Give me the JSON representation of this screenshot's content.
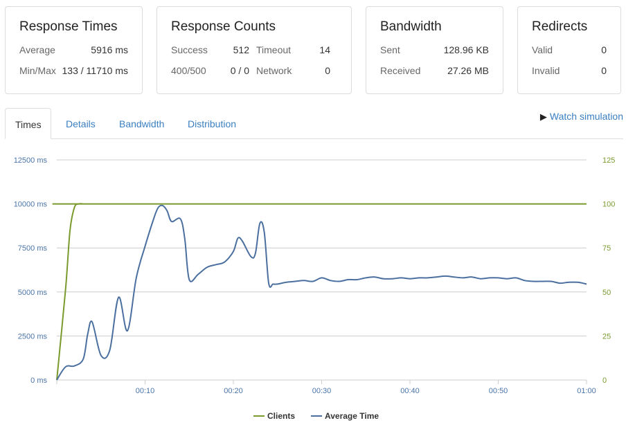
{
  "cards": {
    "times": {
      "title": "Response Times",
      "avg_label": "Average",
      "avg_value": "5916 ms",
      "minmax_label": "Min/Max",
      "minmax_value": "133 / 11710 ms"
    },
    "counts": {
      "title": "Response Counts",
      "success_label": "Success",
      "success_value": "512",
      "timeout_label": "Timeout",
      "timeout_value": "14",
      "err_label": "400/500",
      "err_value": "0 / 0",
      "network_label": "Network",
      "network_value": "0"
    },
    "bandwidth": {
      "title": "Bandwidth",
      "sent_label": "Sent",
      "sent_value": "128.96 KB",
      "recv_label": "Received",
      "recv_value": "27.26 MB"
    },
    "redirects": {
      "title": "Redirects",
      "valid_label": "Valid",
      "valid_value": "0",
      "invalid_label": "Invalid",
      "invalid_value": "0"
    }
  },
  "tabs": [
    "Times",
    "Details",
    "Bandwidth",
    "Distribution"
  ],
  "watch_label": "Watch simulation",
  "colors": {
    "clients": "#7a9a2e",
    "avg": "#4a6f9f",
    "link": "#3a7fc1",
    "grid": "#cccccc"
  },
  "chart_data": {
    "type": "line",
    "title": "",
    "x_unit": "seconds",
    "x_ticks": [
      {
        "v": 10,
        "label": "00:10"
      },
      {
        "v": 20,
        "label": "00:20"
      },
      {
        "v": 30,
        "label": "00:30"
      },
      {
        "v": 40,
        "label": "00:40"
      },
      {
        "v": 50,
        "label": "00:50"
      },
      {
        "v": 60,
        "label": "01:00"
      }
    ],
    "xlim": [
      0,
      60
    ],
    "left_axis": {
      "ylim": [
        0,
        12500
      ],
      "ticks": [
        0,
        2500,
        5000,
        7500,
        10000,
        12500
      ],
      "labels": [
        "0 ms",
        "2500 ms",
        "5000 ms",
        "7500 ms",
        "10000 ms",
        "12500 ms"
      ]
    },
    "right_axis": {
      "ylim": [
        0,
        125
      ],
      "ticks": [
        0,
        25,
        50,
        75,
        100,
        125
      ],
      "labels": [
        "0",
        "25",
        "50",
        "75",
        "100",
        "125"
      ]
    },
    "series": [
      {
        "name": "Clients",
        "axis": "right",
        "x": [
          0,
          1,
          1.5,
          2,
          2.5,
          3,
          4,
          60
        ],
        "y": [
          0,
          52,
          85,
          98,
          100,
          100,
          100,
          100
        ]
      },
      {
        "name": "Average Time",
        "axis": "left",
        "x": [
          0,
          1,
          2,
          3,
          3.5,
          4,
          5,
          6,
          7,
          8,
          9,
          10,
          11,
          11.5,
          12,
          12.5,
          13,
          14,
          14.5,
          15,
          16,
          17,
          18,
          19,
          20,
          20.5,
          21,
          22,
          22.5,
          23,
          23.5,
          24,
          24.5,
          25,
          26,
          27,
          28,
          29,
          30,
          31,
          32,
          33,
          34,
          35,
          36,
          37,
          38,
          39,
          40,
          41,
          42,
          43,
          44,
          45,
          46,
          47,
          48,
          49,
          50,
          51,
          52,
          53,
          54,
          55,
          56,
          57,
          58,
          59,
          60
        ],
        "y": [
          0,
          750,
          800,
          1200,
          2600,
          3300,
          1400,
          1700,
          4700,
          2800,
          5800,
          7600,
          9200,
          9800,
          9900,
          9600,
          9000,
          9150,
          8000,
          5700,
          6000,
          6400,
          6550,
          6700,
          7300,
          8050,
          7900,
          7000,
          7200,
          8900,
          8400,
          5500,
          5450,
          5450,
          5550,
          5600,
          5650,
          5600,
          5800,
          5650,
          5600,
          5700,
          5700,
          5800,
          5850,
          5750,
          5750,
          5800,
          5750,
          5800,
          5800,
          5850,
          5900,
          5850,
          5800,
          5850,
          5750,
          5800,
          5800,
          5750,
          5800,
          5650,
          5600,
          5600,
          5600,
          5500,
          5550,
          5550,
          5450
        ]
      }
    ]
  }
}
